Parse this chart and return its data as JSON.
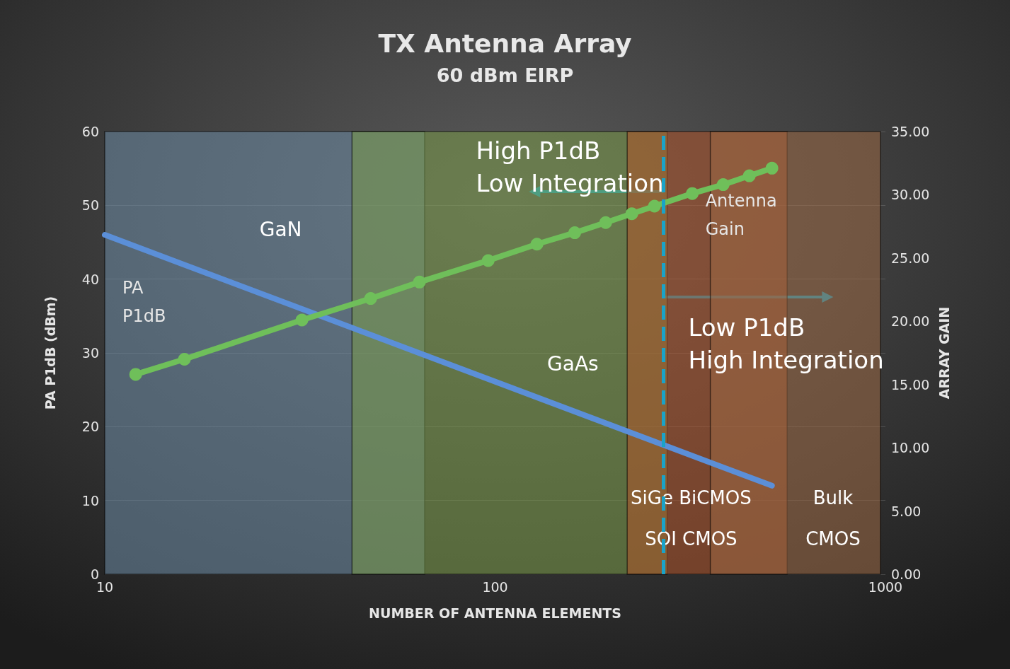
{
  "chart_data": {
    "type": "line",
    "title": "TX Antenna Array",
    "subtitle": "60 dBm EIRP",
    "xlabel": "NUMBER OF ANTENNA ELEMENTS",
    "ylabel": "PA P1dB (dBm)",
    "y2label": "ARRAY GAIN",
    "annotations": [
      "High P1dB\nLow Integration",
      "Low P1dB\nHigh Integration"
    ],
    "log": "x",
    "xlim": [
      10,
      1000
    ],
    "xticks": [
      10,
      100,
      1000
    ],
    "ylim": [
      0,
      60
    ],
    "yticks": [
      0,
      10,
      20,
      30,
      40,
      50,
      60
    ],
    "y2lim": [
      0,
      35
    ],
    "y2ticks": [
      {
        "value": 0,
        "label": "0.00"
      },
      {
        "value": 5,
        "label": "5.00"
      },
      {
        "value": 10,
        "label": "10.00"
      },
      {
        "value": 15,
        "label": "15.00"
      },
      {
        "value": 20,
        "label": "20.00"
      },
      {
        "value": 25,
        "label": "25.00"
      },
      {
        "value": 30,
        "label": "30.00"
      },
      {
        "value": 35,
        "label": "35.00"
      }
    ],
    "grid": "y",
    "legend": false,
    "series": [
      {
        "name": "PA P1dB",
        "color": "#5b8fd8",
        "x": [
          10,
          512
        ],
        "values": [
          46,
          12
        ],
        "marker": "none"
      },
      {
        "name": "Antenna Gain",
        "color": "#6fbf5a",
        "axis": "y2",
        "marker": "circle",
        "x": [
          12,
          16,
          32,
          48,
          64,
          96,
          128,
          160,
          192,
          224,
          256,
          320,
          384,
          448,
          512
        ],
        "values": [
          15.8,
          17.0,
          20.1,
          21.8,
          23.1,
          24.8,
          26.1,
          27.0,
          27.8,
          28.5,
          29.1,
          30.1,
          30.8,
          31.5,
          32.1
        ]
      }
    ],
    "ref_lines": [
      {
        "axis": "x",
        "value": 270,
        "color": "#1aa3c8",
        "line_style": "dashed"
      }
    ],
    "bands": [
      {
        "axis": "x",
        "from": 10,
        "to": 66,
        "label": "GaN",
        "color": "#6e8ca6"
      },
      {
        "axis": "x",
        "from": 43,
        "to": 276,
        "label": "GaAs",
        "color": "#7a9a48"
      },
      {
        "axis": "x",
        "from": 218,
        "to": 560,
        "label": "SiGe BiCMOS\nSOI CMOS",
        "color": "#b0542a"
      },
      {
        "axis": "x",
        "from": 356,
        "to": 971,
        "label": "Bulk\nCMOS",
        "color": "#9c6a45"
      }
    ]
  }
}
